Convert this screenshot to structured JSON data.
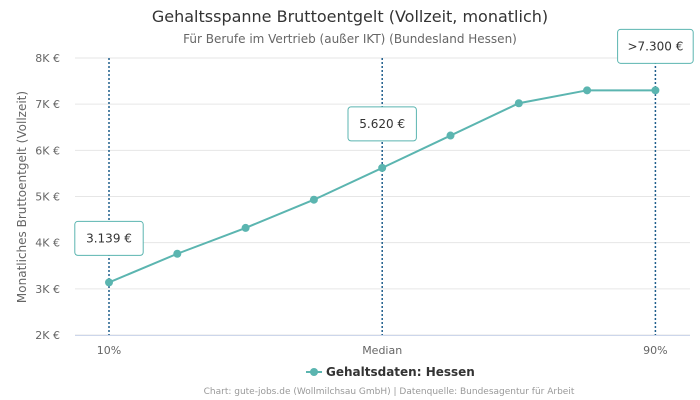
{
  "chart_data": {
    "type": "line",
    "title": "Gehaltsspanne Bruttoentgelt (Vollzeit, monatlich)",
    "subtitle": "Für Berufe im Vertrieb (außer IKT) (Bundesland Hessen)",
    "ylabel": "Monatliches Bruttoentgelt (Vollzeit)",
    "xlabel": "",
    "ylim": [
      2000,
      8000
    ],
    "y_ticks": [
      {
        "value": 2000,
        "label": "2K €"
      },
      {
        "value": 3000,
        "label": "3K €"
      },
      {
        "value": 4000,
        "label": "4K €"
      },
      {
        "value": 5000,
        "label": "5K €"
      },
      {
        "value": 6000,
        "label": "6K €"
      },
      {
        "value": 7000,
        "label": "7K €"
      },
      {
        "value": 8000,
        "label": "8K €"
      }
    ],
    "x_ticks": [
      {
        "index": 0,
        "label": "10%"
      },
      {
        "index": 4,
        "label": "Median"
      },
      {
        "index": 8,
        "label": "90%"
      }
    ],
    "series": [
      {
        "name": "Gehaltsdaten: Hessen",
        "color": "#5bb5b0",
        "values": [
          3139,
          3760,
          4320,
          4930,
          5620,
          6320,
          7020,
          7300,
          7300
        ]
      }
    ],
    "markers": [
      {
        "index": 0,
        "label": "3.139 €"
      },
      {
        "index": 4,
        "label": "5.620 €"
      },
      {
        "index": 8,
        "label": ">7.300 €"
      }
    ],
    "marker_line_color": "#1f5e8c",
    "legend": "Gehaltsdaten: Hessen",
    "legend_position": "bottom-center",
    "credits": "Chart: gute-jobs.de (Wollmilchsau GmbH) | Datenquelle: Bundesagentur für Arbeit"
  }
}
